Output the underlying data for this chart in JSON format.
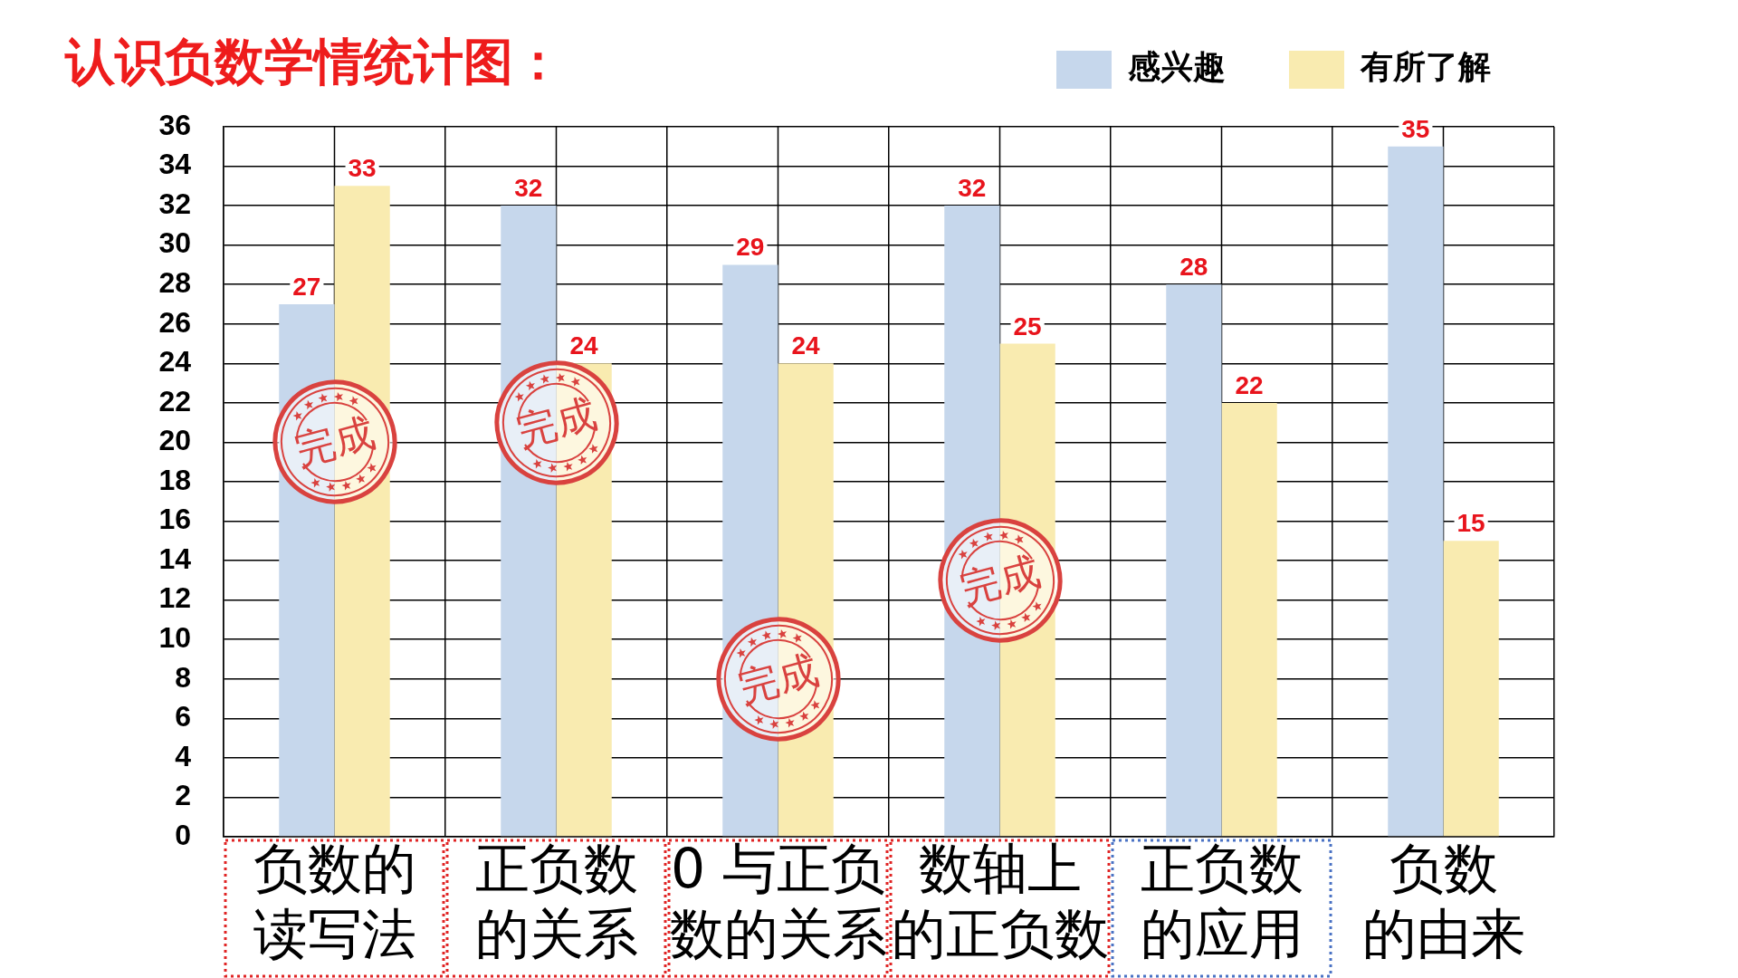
{
  "chart_data": {
    "type": "bar",
    "title": "认识负数学情统计图：",
    "categories": [
      "负数的读写法",
      "正负数的关系",
      "0 与正负数的关系",
      "数轴上的正负数",
      "正负数的应用",
      "负数的由来"
    ],
    "series": [
      {
        "name": "感兴趣",
        "color": "#c6d7ec",
        "values": [
          27,
          32,
          29,
          32,
          28,
          35
        ]
      },
      {
        "name": "有所了解",
        "color": "#f9ebb0",
        "values": [
          33,
          24,
          24,
          25,
          22,
          15
        ]
      }
    ],
    "ylim": [
      0,
      36
    ],
    "yticks": [
      0,
      2,
      4,
      6,
      8,
      10,
      12,
      14,
      16,
      18,
      20,
      22,
      24,
      26,
      28,
      30,
      32,
      34,
      36
    ],
    "grid": true,
    "legend": "top right",
    "data_labels": true,
    "annotations": [
      {
        "text": "完成",
        "x": "负数的读写法",
        "y": 20
      },
      {
        "text": "完成",
        "x": "正负数的关系",
        "y": 21
      },
      {
        "text": "完成",
        "x": "0 与正负数的关系",
        "y": 8
      },
      {
        "text": "完成",
        "x": "数轴上的正负数",
        "y": 13
      }
    ]
  }
}
